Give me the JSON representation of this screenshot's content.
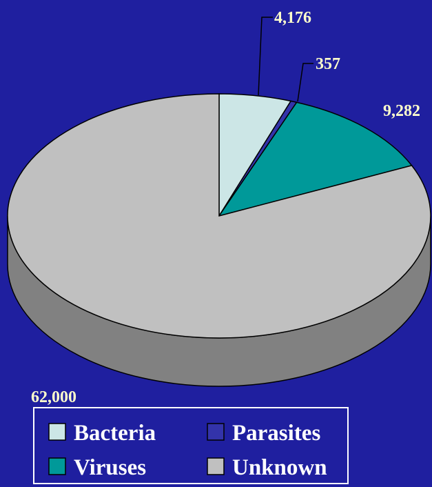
{
  "chart_data": {
    "type": "pie",
    "categories": [
      "Bacteria",
      "Parasites",
      "Viruses",
      "Unknown"
    ],
    "values": [
      4176,
      357,
      9282,
      62000
    ],
    "value_labels": [
      "4,176",
      "357",
      "9,282",
      "62,000"
    ],
    "colors": [
      "#cce6e6",
      "#3333aa",
      "#009999",
      "#c0c0c0"
    ],
    "legend": "bottom"
  }
}
